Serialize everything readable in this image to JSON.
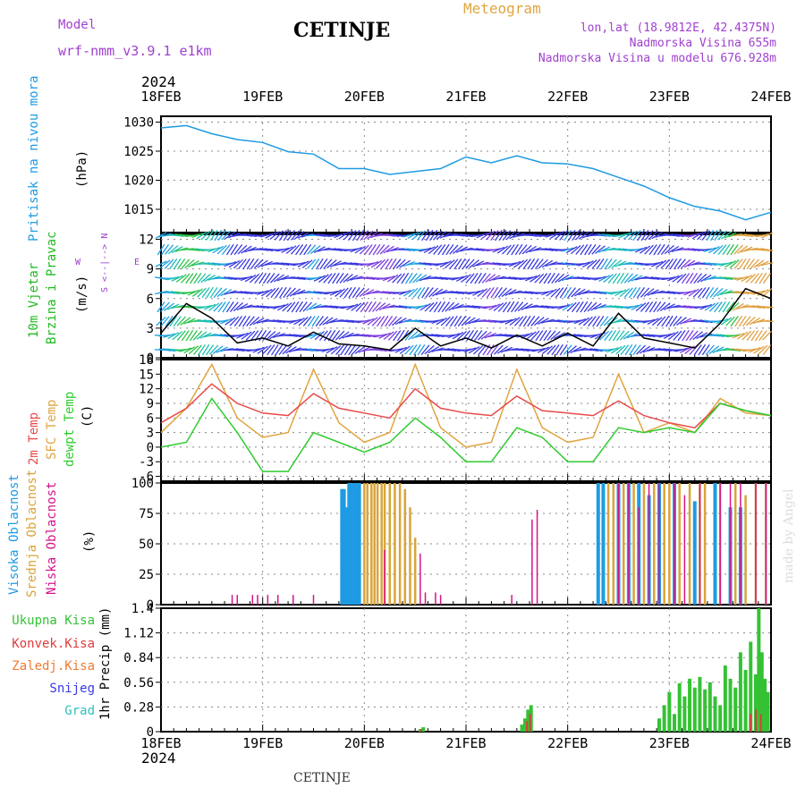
{
  "header": {
    "model_label": "Model",
    "model_name": "wrf-nmm_v3.9.1  e1km",
    "station": "CETINJE",
    "product": "Meteogram",
    "coords": "lon,lat (18.9812E, 42.4375N)",
    "altitude": "Nadmorska Visina 655m",
    "model_altitude": "Nadmorska Visina u modelu 676.928m",
    "footer_station": "CETINJE",
    "watermark": "made by Angel"
  },
  "colors": {
    "pressure": "#1e9be3",
    "temp2m": "#e84a4a",
    "sfc": "#e0a540",
    "dew": "#2ecc2e",
    "cloud_high": "#1e9be3",
    "cloud_mid": "#d9a43a",
    "cloud_low": "#d4148c",
    "precip_total": "#34c234",
    "precip_conv": "#e23a3a",
    "precip_strat": "#f07a30",
    "snow": "#3a3ae0",
    "grad": "#2ec0c0",
    "wind_label": "#22b822",
    "purple": "#a040d0"
  },
  "chart_data": [
    {
      "type": "line",
      "panel": "pressure",
      "ylabel_main": "Pritisak na nivou mora",
      "ylabel_unit": "(hPa)",
      "x_ticks": [
        "18FEB",
        "19FEB",
        "20FEB",
        "21FEB",
        "22FEB",
        "23FEB",
        "24FEB"
      ],
      "x_year": "2024",
      "ylim": [
        1011,
        1031
      ],
      "y_ticks": [
        1015,
        1020,
        1025,
        1030
      ],
      "grid": true,
      "series": [
        {
          "x": [
            0,
            0.25,
            0.5,
            0.75,
            1,
            1.25,
            1.5,
            1.75,
            2,
            2.25,
            2.5,
            2.75,
            3,
            3.25,
            3.5,
            3.75,
            4,
            4.25,
            4.5,
            4.75,
            5,
            5.25,
            5.5,
            5.75,
            6
          ],
          "values": [
            1029,
            1029.4,
            1028,
            1027,
            1026.5,
            1024.9,
            1024.5,
            1022,
            1022,
            1021,
            1021.5,
            1022,
            1024,
            1023,
            1024.2,
            1023,
            1022.8,
            1022,
            1020.5,
            1019,
            1017,
            1015.5,
            1014.7,
            1013.2,
            1014.5
          ]
        }
      ]
    },
    {
      "type": "line",
      "panel": "wind",
      "ylabel_main": "10m Vjetar",
      "ylabel_sub": "Brzina i Pravac",
      "ylabel_unit": "(m/s)",
      "compass": [
        "N",
        "W",
        "E",
        "S"
      ],
      "ylim": [
        0,
        12.5
      ],
      "y_ticks": [
        0,
        3,
        6,
        9,
        12
      ],
      "grid": true,
      "series": [
        {
          "x": [
            0,
            0.25,
            0.5,
            0.75,
            1,
            1.25,
            1.5,
            1.75,
            2,
            2.25,
            2.5,
            2.75,
            3,
            3.25,
            3.5,
            3.75,
            4,
            4.25,
            4.5,
            4.75,
            5,
            5.25,
            5.5,
            5.75,
            6
          ],
          "values": [
            2.5,
            5.5,
            4,
            1.5,
            2,
            1.2,
            2.6,
            1.4,
            1.2,
            0.8,
            3,
            1.2,
            2,
            1,
            2.3,
            1.2,
            2.5,
            1.2,
            4.5,
            2,
            1.5,
            1,
            3.5,
            7,
            6
          ]
        }
      ]
    },
    {
      "type": "line",
      "panel": "temperature",
      "ylabels": [
        "2m Temp",
        "SFC Temp",
        "dewpt Temp"
      ],
      "ylabel_unit": "(C)",
      "ylim": [
        -7,
        18
      ],
      "y_ticks": [
        -6,
        -3,
        0,
        3,
        6,
        9,
        12,
        15,
        18
      ],
      "grid": true,
      "series": [
        {
          "name": "2m Temp",
          "x": [
            0,
            0.25,
            0.5,
            0.75,
            1,
            1.25,
            1.5,
            1.75,
            2,
            2.25,
            2.5,
            2.75,
            3,
            3.25,
            3.5,
            3.75,
            4,
            4.25,
            4.5,
            4.75,
            5,
            5.25,
            5.5,
            5.75,
            6
          ],
          "values": [
            5,
            8,
            13,
            9,
            7,
            6.5,
            11,
            8,
            7,
            6,
            12,
            8,
            7,
            6.5,
            10.5,
            7.5,
            7,
            6.5,
            9.5,
            6.5,
            5,
            4,
            9,
            7.5,
            6.5
          ]
        },
        {
          "name": "SFC Temp",
          "x": [
            0,
            0.25,
            0.5,
            0.75,
            1,
            1.25,
            1.5,
            1.75,
            2,
            2.25,
            2.5,
            2.75,
            3,
            3.25,
            3.5,
            3.75,
            4,
            4.25,
            4.5,
            4.75,
            5,
            5.25,
            5.5,
            5.75,
            6
          ],
          "values": [
            3,
            8,
            17,
            6,
            2,
            3,
            16,
            5,
            1,
            3,
            17,
            4,
            0,
            1,
            16,
            4,
            1,
            2,
            15,
            3,
            5,
            3,
            10,
            7,
            6.5
          ]
        },
        {
          "name": "dewpt Temp",
          "x": [
            0,
            0.25,
            0.5,
            0.75,
            1,
            1.25,
            1.5,
            1.75,
            2,
            2.25,
            2.5,
            2.75,
            3,
            3.25,
            3.5,
            3.75,
            4,
            4.25,
            4.5,
            4.75,
            5,
            5.25,
            5.5,
            5.75,
            6
          ],
          "values": [
            0,
            1,
            10,
            3,
            -5,
            -5,
            3,
            1,
            -1,
            1,
            6,
            2,
            -3,
            -3,
            4,
            2,
            -3,
            -3,
            4,
            3,
            4,
            3,
            9,
            7.5,
            6.5
          ]
        }
      ]
    },
    {
      "type": "bar",
      "panel": "clouds",
      "ylabels": [
        "Visoka Oblacnost",
        "Srednja Oblacnost",
        "Niska Oblacnost"
      ],
      "ylabel_unit": "(%)",
      "ylim": [
        0,
        100
      ],
      "y_ticks": [
        0,
        25,
        50,
        75,
        100
      ],
      "grid": true,
      "series": [
        {
          "name": "Visoka Oblacnost",
          "x": [
            1.78,
            1.8,
            1.83,
            1.85,
            1.88,
            1.9,
            1.93,
            1.95,
            4.3,
            4.35,
            4.5,
            4.6,
            4.7,
            4.8,
            4.9,
            5.05,
            5.25,
            5.45,
            5.6,
            5.7
          ],
          "values": [
            95,
            95,
            80,
            100,
            100,
            100,
            100,
            100,
            100,
            100,
            100,
            100,
            100,
            90,
            100,
            100,
            85,
            100,
            80,
            80
          ]
        },
        {
          "name": "Srednja Oblacnost",
          "x": [
            2.0,
            2.03,
            2.07,
            2.1,
            2.13,
            2.17,
            2.2,
            2.25,
            2.3,
            2.35,
            2.4,
            2.45,
            2.5,
            4.4,
            4.45,
            4.55,
            4.65,
            4.75,
            4.85,
            4.95,
            5.0,
            5.1,
            5.2,
            5.3,
            5.35,
            5.5,
            5.65,
            5.75,
            5.85,
            5.95
          ],
          "values": [
            100,
            100,
            100,
            100,
            100,
            100,
            100,
            100,
            100,
            100,
            95,
            80,
            55,
            100,
            100,
            100,
            100,
            100,
            100,
            100,
            100,
            100,
            100,
            100,
            100,
            100,
            100,
            90,
            100,
            100
          ]
        },
        {
          "name": "Niska Oblacnost",
          "x": [
            0.7,
            0.75,
            0.9,
            0.95,
            1.05,
            1.15,
            1.3,
            1.5,
            2.2,
            2.55,
            2.6,
            2.7,
            2.75,
            3.45,
            3.65,
            3.7,
            4.5,
            4.6,
            4.7,
            4.8,
            4.9,
            5.05,
            5.15,
            5.3,
            5.5,
            5.6,
            5.7,
            5.85,
            5.95
          ],
          "values": [
            8,
            8,
            8,
            8,
            8,
            8,
            8,
            8,
            45,
            42,
            10,
            10,
            8,
            8,
            70,
            78,
            100,
            100,
            80,
            100,
            100,
            100,
            90,
            100,
            100,
            100,
            100,
            100,
            100
          ]
        }
      ]
    },
    {
      "type": "bar",
      "panel": "precip",
      "ylabels": [
        "Ukupna Kisa",
        "Konvek.Kisa",
        "Zaledj.Kisa",
        "Snijeg",
        "Grad"
      ],
      "ylabel_unit": "1hr Precip (mm)",
      "ylim": [
        0,
        1.4
      ],
      "y_ticks": [
        0,
        0.28,
        0.56,
        0.84,
        1.12,
        1.4
      ],
      "grid": true,
      "series": [
        {
          "name": "Ukupna Kisa",
          "x": [
            2.55,
            2.58,
            3.55,
            3.58,
            3.61,
            3.64,
            4.9,
            4.95,
            5.0,
            5.05,
            5.1,
            5.15,
            5.2,
            5.25,
            5.3,
            5.35,
            5.4,
            5.45,
            5.5,
            5.55,
            5.6,
            5.65,
            5.7,
            5.75,
            5.8,
            5.85,
            5.88,
            5.91,
            5.94,
            5.97
          ],
          "values": [
            0.03,
            0.05,
            0.08,
            0.15,
            0.25,
            0.3,
            0.15,
            0.3,
            0.45,
            0.2,
            0.55,
            0.4,
            0.6,
            0.5,
            0.62,
            0.48,
            0.56,
            0.4,
            0.3,
            0.75,
            0.6,
            0.5,
            0.9,
            0.7,
            1.02,
            0.65,
            1.4,
            0.9,
            0.6,
            0.45
          ]
        },
        {
          "name": "Konvek.Kisa",
          "x": [
            2.56,
            3.6,
            3.63,
            5.8,
            5.85,
            5.9
          ],
          "values": [
            0.03,
            0.12,
            0.2,
            0.2,
            0.25,
            0.2
          ]
        }
      ]
    }
  ]
}
